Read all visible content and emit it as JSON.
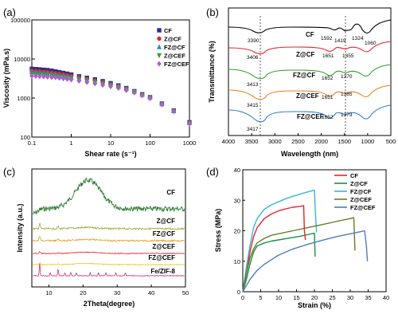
{
  "chart_data": [
    {
      "panel_label": "(a)",
      "type": "scatter",
      "xlabel": "Shear rate (s⁻¹)",
      "ylabel": "Viscosity (mPa.s)",
      "x_scale": "log",
      "y_scale": "log",
      "xlim": [
        0.1,
        1000
      ],
      "ylim": [
        100,
        100000
      ],
      "x_ticks": [
        "0.1",
        "1",
        "10",
        "100",
        "1000"
      ],
      "y_ticks": [
        "100",
        "1000",
        "10000",
        "100000"
      ],
      "legend_position": "top-right",
      "x": [
        0.1,
        0.126,
        0.158,
        0.2,
        0.25,
        0.32,
        0.4,
        0.5,
        0.63,
        0.79,
        1,
        1.58,
        2.5,
        4,
        6.3,
        10,
        15.8,
        25,
        40,
        63,
        100,
        200,
        400,
        1000
      ],
      "series": [
        {
          "name": "CF",
          "color": "#2b2f8f",
          "marker": "square",
          "values": [
            5600,
            5500,
            5400,
            5300,
            5200,
            5000,
            4800,
            4600,
            4400,
            4200,
            4000,
            3600,
            3300,
            3000,
            2700,
            2400,
            2100,
            1800,
            1500,
            1250,
            1050,
            720,
            480,
            240
          ]
        },
        {
          "name": "Z@CF",
          "color": "#e8232b",
          "marker": "circle",
          "values": [
            5000,
            4900,
            4800,
            4700,
            4600,
            4450,
            4300,
            4150,
            4000,
            3850,
            3700,
            3400,
            3100,
            2800,
            2550,
            2300,
            2000,
            1750,
            1480,
            1230,
            1040,
            710,
            470,
            235
          ]
        },
        {
          "name": "FZ@CF",
          "color": "#1f8fd0",
          "marker": "triangle-up",
          "values": [
            4600,
            4500,
            4400,
            4300,
            4200,
            4100,
            3950,
            3800,
            3700,
            3550,
            3400,
            3150,
            2900,
            2650,
            2400,
            2200,
            1950,
            1700,
            1450,
            1210,
            1020,
            700,
            465,
            230
          ]
        },
        {
          "name": "Z@CEF",
          "color": "#2e9e3f",
          "marker": "triangle-down",
          "values": [
            4100,
            4050,
            4000,
            3950,
            3850,
            3750,
            3650,
            3550,
            3450,
            3350,
            3200,
            3000,
            2750,
            2500,
            2300,
            2100,
            1900,
            1650,
            1420,
            1190,
            1000,
            690,
            460,
            225
          ]
        },
        {
          "name": "FZ@CEF",
          "color": "#b45cc8",
          "marker": "diamond",
          "values": [
            3700,
            3650,
            3600,
            3550,
            3500,
            3400,
            3350,
            3250,
            3150,
            3050,
            2950,
            2750,
            2550,
            2350,
            2150,
            1980,
            1800,
            1580,
            1370,
            1160,
            980,
            680,
            455,
            220
          ]
        }
      ]
    },
    {
      "panel_label": "(b)",
      "type": "line",
      "xlabel": "Wavelength (nm)",
      "ylabel": "Transmittance (%)",
      "xlim": [
        4000,
        500
      ],
      "x_ticks": [
        "4000",
        "3500",
        "3000",
        "2500",
        "2000",
        "1500",
        "1000",
        "500"
      ],
      "reference_lines_x": [
        3400,
        1390
      ],
      "series": [
        {
          "name": "CF",
          "color": "#000000",
          "peaks": [
            {
              "label": "3390",
              "x": 3390
            },
            {
              "label": "1592",
              "x": 1592
            },
            {
              "label": "1419",
              "x": 1419
            },
            {
              "label": "1324",
              "x": 1324
            },
            {
              "label": "1060",
              "x": 1060
            }
          ]
        },
        {
          "name": "Z@CF",
          "color": "#e8232b",
          "peaks": [
            {
              "label": "3406",
              "x": 3406
            },
            {
              "label": "1651",
              "x": 1651
            },
            {
              "label": "1355",
              "x": 1355
            }
          ]
        },
        {
          "name": "FZ@CF",
          "color": "#2ea02e",
          "peaks": [
            {
              "label": "3413",
              "x": 3413
            },
            {
              "label": "1652",
              "x": 1652
            },
            {
              "label": "1370",
              "x": 1370
            }
          ]
        },
        {
          "name": "Z@CEF",
          "color": "#f07f1e",
          "peaks": [
            {
              "label": "3415",
              "x": 3415
            },
            {
              "label": "1651",
              "x": 1651
            },
            {
              "label": "1385",
              "x": 1385
            }
          ]
        },
        {
          "name": "FZ@CEF",
          "color": "#2a7fd4",
          "peaks": [
            {
              "label": "3417",
              "x": 3417
            },
            {
              "label": "1652",
              "x": 1652
            },
            {
              "label": "1379",
              "x": 1379
            }
          ]
        }
      ]
    },
    {
      "panel_label": "(c)",
      "type": "line",
      "xlabel": "2Theta(degree)",
      "ylabel": "Intensity (a.u.)",
      "xlim": [
        5,
        50
      ],
      "x_ticks": [
        "10",
        "20",
        "30",
        "40",
        "50"
      ],
      "series": [
        {
          "name": "CF",
          "color": "#2e7d32",
          "broad_peak_x": 21.5
        },
        {
          "name": "Z@CF",
          "color": "#9aaa2e"
        },
        {
          "name": "FZ@CF",
          "color": "#e0a020"
        },
        {
          "name": "Z@CEF",
          "color": "#e8232b"
        },
        {
          "name": "FZ@CEF",
          "color": "#f0c020"
        },
        {
          "name": "Fe/ZIF-8",
          "color": "#d0306a",
          "peaks_x": [
            7.3,
            10.4,
            12.7,
            14.7,
            16.4,
            18.0,
            22.1,
            24.5,
            26.7,
            29.6,
            32.4
          ]
        }
      ]
    },
    {
      "panel_label": "(d)",
      "type": "line",
      "xlabel": "Strain (%)",
      "ylabel": "Stress (MPa)",
      "xlim": [
        0,
        40
      ],
      "ylim": [
        0,
        40
      ],
      "x_ticks": [
        "0",
        "5",
        "10",
        "15",
        "20",
        "25",
        "30",
        "35",
        "40"
      ],
      "y_ticks": [
        "0",
        "10",
        "20",
        "30",
        "40"
      ],
      "legend_position": "top-right",
      "series": [
        {
          "name": "CF",
          "color": "#e8232b",
          "x": [
            0,
            1,
            2,
            3,
            4,
            6,
            8,
            10,
            12,
            14,
            16,
            17,
            17.2,
            17.5
          ],
          "values": [
            0,
            6,
            13,
            18,
            21,
            24,
            25.5,
            26.5,
            27.2,
            27.7,
            28,
            28.2,
            20,
            17
          ]
        },
        {
          "name": "Z@CF",
          "color": "#1a8f4a",
          "x": [
            0,
            1,
            2,
            3,
            4,
            6,
            8,
            10,
            12,
            14,
            16,
            18,
            20,
            20.2
          ],
          "values": [
            0,
            4,
            9,
            13,
            15,
            16,
            16.6,
            17,
            17.4,
            17.8,
            18.2,
            18.7,
            19.2,
            11.5
          ]
        },
        {
          "name": "FZ@CF",
          "color": "#3ab6d6",
          "x": [
            0,
            1,
            2,
            3,
            4,
            6,
            8,
            10,
            12,
            14,
            16,
            18,
            20,
            20.3,
            20.6
          ],
          "values": [
            0,
            8,
            15,
            21,
            24,
            27,
            28.5,
            29.5,
            30.5,
            31.3,
            32,
            32.7,
            33.3,
            25,
            19.5
          ]
        },
        {
          "name": "Z@CEF",
          "color": "#6a7a2a",
          "x": [
            0,
            1,
            2,
            3,
            4,
            6,
            8,
            10,
            14,
            18,
            22,
            26,
            30,
            31,
            31.3
          ],
          "values": [
            0,
            6,
            11,
            14,
            16,
            17.5,
            18.5,
            19,
            20,
            21,
            22,
            23,
            24,
            24.3,
            13.5
          ]
        },
        {
          "name": "FZ@CEF",
          "color": "#4a7fc0",
          "x": [
            0,
            2,
            4,
            6,
            8,
            10,
            14,
            18,
            22,
            26,
            30,
            33,
            34,
            34.5,
            34.8
          ],
          "values": [
            0,
            4,
            7,
            9,
            10.5,
            12,
            14,
            15.5,
            16.8,
            18,
            19,
            19.7,
            20,
            15,
            10
          ]
        }
      ]
    }
  ]
}
